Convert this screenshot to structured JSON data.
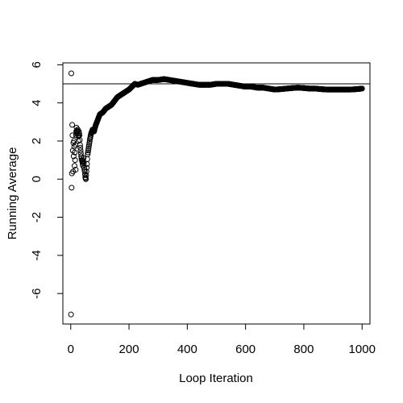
{
  "chart_data": {
    "type": "scatter",
    "title": "",
    "xlabel": "Loop Iteration",
    "ylabel": "Running Average",
    "xlim": [
      -27,
      1027
    ],
    "ylim": [
      -7.6,
      6.1
    ],
    "x_ticks": [
      0,
      200,
      400,
      600,
      800,
      1000
    ],
    "x_tick_labels": [
      "0",
      "200",
      "400",
      "600",
      "800",
      "1000"
    ],
    "y_ticks": [
      -6,
      -4,
      -2,
      0,
      2,
      4,
      6
    ],
    "y_tick_labels": [
      "-6",
      "-4",
      "-2",
      "0",
      "2",
      "4",
      "6"
    ],
    "reference_line_y": 5,
    "grid": false,
    "legend": "none",
    "marker": "open-circle",
    "marker_color": "#000000",
    "n_points": 1000,
    "checkpoints": [
      [
        1,
        -7.1
      ],
      [
        2,
        5.55
      ],
      [
        3,
        -0.45
      ],
      [
        4,
        0.3
      ],
      [
        5,
        2.85
      ],
      [
        6,
        2.3
      ],
      [
        7,
        1.5
      ],
      [
        8,
        0.4
      ],
      [
        9,
        1.9
      ],
      [
        10,
        1.2
      ],
      [
        11,
        2.0
      ],
      [
        12,
        1.7
      ],
      [
        13,
        0.7
      ],
      [
        14,
        1.4
      ],
      [
        15,
        1.0
      ],
      [
        16,
        1.8
      ],
      [
        17,
        0.5
      ],
      [
        18,
        2.3
      ],
      [
        20,
        2.7
      ],
      [
        22,
        2.4
      ],
      [
        24,
        2.6
      ],
      [
        26,
        2.0
      ],
      [
        28,
        2.5
      ],
      [
        30,
        2.3
      ],
      [
        32,
        1.8
      ],
      [
        34,
        1.5
      ],
      [
        36,
        1.2
      ],
      [
        38,
        1.0
      ],
      [
        40,
        0.9
      ],
      [
        42,
        0.7
      ],
      [
        44,
        1.1
      ],
      [
        46,
        0.6
      ],
      [
        48,
        0.4
      ],
      [
        50,
        0.1
      ],
      [
        52,
        0.0
      ],
      [
        54,
        0.4
      ],
      [
        56,
        0.8
      ],
      [
        58,
        1.3
      ],
      [
        60,
        1.5
      ],
      [
        63,
        1.8
      ],
      [
        66,
        2.1
      ],
      [
        70,
        2.4
      ],
      [
        75,
        2.6
      ],
      [
        80,
        2.5
      ],
      [
        85,
        2.8
      ],
      [
        90,
        3.0
      ],
      [
        95,
        3.2
      ],
      [
        100,
        3.4
      ],
      [
        110,
        3.5
      ],
      [
        120,
        3.7
      ],
      [
        130,
        3.8
      ],
      [
        140,
        3.9
      ],
      [
        150,
        4.1
      ],
      [
        160,
        4.3
      ],
      [
        170,
        4.4
      ],
      [
        180,
        4.5
      ],
      [
        190,
        4.6
      ],
      [
        200,
        4.7
      ],
      [
        210,
        4.85
      ],
      [
        220,
        5.0
      ],
      [
        230,
        4.95
      ],
      [
        240,
        5.0
      ],
      [
        250,
        5.05
      ],
      [
        260,
        5.1
      ],
      [
        270,
        5.15
      ],
      [
        280,
        5.2
      ],
      [
        290,
        5.2
      ],
      [
        300,
        5.2
      ],
      [
        320,
        5.25
      ],
      [
        340,
        5.2
      ],
      [
        360,
        5.15
      ],
      [
        380,
        5.1
      ],
      [
        400,
        5.05
      ],
      [
        420,
        5.0
      ],
      [
        440,
        4.95
      ],
      [
        460,
        4.95
      ],
      [
        480,
        4.95
      ],
      [
        500,
        5.0
      ],
      [
        520,
        5.0
      ],
      [
        540,
        5.0
      ],
      [
        560,
        4.95
      ],
      [
        580,
        4.9
      ],
      [
        600,
        4.85
      ],
      [
        620,
        4.85
      ],
      [
        640,
        4.8
      ],
      [
        660,
        4.8
      ],
      [
        680,
        4.75
      ],
      [
        700,
        4.7
      ],
      [
        720,
        4.72
      ],
      [
        740,
        4.75
      ],
      [
        760,
        4.78
      ],
      [
        780,
        4.8
      ],
      [
        800,
        4.78
      ],
      [
        820,
        4.75
      ],
      [
        840,
        4.75
      ],
      [
        860,
        4.72
      ],
      [
        880,
        4.7
      ],
      [
        900,
        4.7
      ],
      [
        920,
        4.7
      ],
      [
        940,
        4.7
      ],
      [
        960,
        4.7
      ],
      [
        980,
        4.72
      ],
      [
        1000,
        4.75
      ]
    ]
  }
}
